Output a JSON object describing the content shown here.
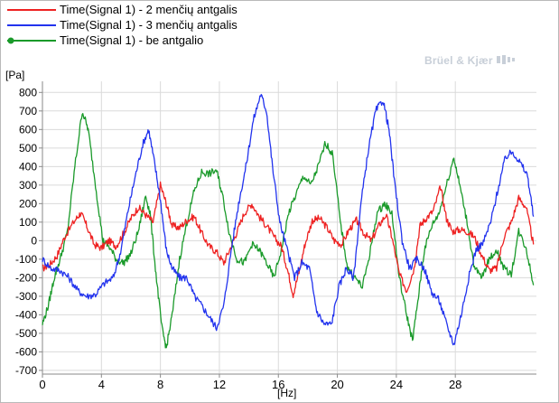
{
  "colors": {
    "series_red": "#ee2222",
    "series_blue": "#2233ee",
    "series_green": "#1a9a2a",
    "grid": "#dadada",
    "axis": "#8a8a8a",
    "watermark": "#c8cfd8"
  },
  "watermark": "Brüel & Kjær",
  "watermark_icon": "bk-logo-icon",
  "chart_data": {
    "type": "line",
    "xlabel": "[Hz]",
    "ylabel": "[Pa]",
    "xlim": [
      0,
      33.5
    ],
    "ylim": [
      -720,
      860
    ],
    "x_ticks": [
      0,
      4,
      8,
      12,
      16,
      20,
      24,
      28
    ],
    "y_ticks": [
      -700,
      -600,
      -500,
      -400,
      -300,
      -200,
      -100,
      0,
      100,
      200,
      300,
      400,
      500,
      600,
      700,
      800
    ],
    "grid": true,
    "legend_position": "top-left",
    "series": [
      {
        "name": "Time(Signal 1) - 2 menčių antgalis",
        "marker": "none",
        "points": [
          [
            0,
            -150
          ],
          [
            0.5,
            -130
          ],
          [
            1,
            -80
          ],
          [
            1.5,
            20
          ],
          [
            2.2,
            110
          ],
          [
            2.6,
            150
          ],
          [
            3,
            80
          ],
          [
            3.5,
            -20
          ],
          [
            4,
            -40
          ],
          [
            4.5,
            0
          ],
          [
            5,
            -30
          ],
          [
            5.5,
            40
          ],
          [
            6,
            120
          ],
          [
            6.5,
            180
          ],
          [
            7,
            140
          ],
          [
            7.5,
            100
          ],
          [
            8,
            300
          ],
          [
            8.4,
            200
          ],
          [
            8.8,
            80
          ],
          [
            9.3,
            70
          ],
          [
            9.8,
            110
          ],
          [
            10.3,
            130
          ],
          [
            10.8,
            40
          ],
          [
            11.3,
            -30
          ],
          [
            11.8,
            -60
          ],
          [
            12.3,
            -120
          ],
          [
            12.8,
            -30
          ],
          [
            13.2,
            50
          ],
          [
            13.7,
            150
          ],
          [
            14.2,
            200
          ],
          [
            14.7,
            130
          ],
          [
            15.2,
            80
          ],
          [
            15.7,
            20
          ],
          [
            16.2,
            -30
          ],
          [
            16.6,
            -150
          ],
          [
            17,
            -290
          ],
          [
            17.4,
            -170
          ],
          [
            17.8,
            -20
          ],
          [
            18.3,
            110
          ],
          [
            18.8,
            120
          ],
          [
            19.3,
            70
          ],
          [
            19.8,
            0
          ],
          [
            20.3,
            -20
          ],
          [
            20.8,
            60
          ],
          [
            21.3,
            110
          ],
          [
            21.8,
            40
          ],
          [
            22.3,
            0
          ],
          [
            22.8,
            80
          ],
          [
            23.3,
            140
          ],
          [
            23.7,
            20
          ],
          [
            24.2,
            -180
          ],
          [
            24.7,
            -270
          ],
          [
            25.2,
            -150
          ],
          [
            25.6,
            80
          ],
          [
            26,
            120
          ],
          [
            26.5,
            160
          ],
          [
            27,
            290
          ],
          [
            27.4,
            120
          ],
          [
            27.8,
            50
          ],
          [
            28.3,
            60
          ],
          [
            28.8,
            50
          ],
          [
            29.3,
            20
          ],
          [
            29.8,
            -80
          ],
          [
            30.3,
            -160
          ],
          [
            30.8,
            -150
          ],
          [
            31.3,
            20
          ],
          [
            31.8,
            100
          ],
          [
            32.3,
            230
          ],
          [
            32.8,
            180
          ],
          [
            33.3,
            -20
          ]
        ]
      },
      {
        "name": "Time(Signal 1) - 3 menčių antgalis",
        "marker": "none",
        "points": [
          [
            0,
            -100
          ],
          [
            0.6,
            -150
          ],
          [
            1.2,
            -160
          ],
          [
            1.8,
            -200
          ],
          [
            2.4,
            -270
          ],
          [
            3,
            -300
          ],
          [
            3.6,
            -290
          ],
          [
            4.2,
            -230
          ],
          [
            4.8,
            -200
          ],
          [
            5.3,
            -60
          ],
          [
            5.8,
            160
          ],
          [
            6.3,
            350
          ],
          [
            6.8,
            520
          ],
          [
            7.2,
            600
          ],
          [
            7.6,
            420
          ],
          [
            8,
            220
          ],
          [
            8.4,
            -50
          ],
          [
            8.8,
            -150
          ],
          [
            9.3,
            -200
          ],
          [
            9.8,
            -200
          ],
          [
            10.3,
            -300
          ],
          [
            10.8,
            -350
          ],
          [
            11.3,
            -410
          ],
          [
            11.8,
            -470
          ],
          [
            12.3,
            -350
          ],
          [
            12.8,
            -50
          ],
          [
            13.3,
            200
          ],
          [
            13.8,
            400
          ],
          [
            14.3,
            650
          ],
          [
            14.8,
            790
          ],
          [
            15.2,
            700
          ],
          [
            15.6,
            400
          ],
          [
            16.1,
            100
          ],
          [
            16.6,
            -50
          ],
          [
            17.1,
            -200
          ],
          [
            17.6,
            -120
          ],
          [
            18.1,
            -150
          ],
          [
            18.6,
            -380
          ],
          [
            19.1,
            -450
          ],
          [
            19.6,
            -450
          ],
          [
            20.1,
            -250
          ],
          [
            20.6,
            -150
          ],
          [
            21.1,
            -200
          ],
          [
            21.6,
            200
          ],
          [
            22.1,
            490
          ],
          [
            22.6,
            700
          ],
          [
            23.1,
            760
          ],
          [
            23.5,
            600
          ],
          [
            23.9,
            300
          ],
          [
            24.4,
            0
          ],
          [
            24.9,
            -150
          ],
          [
            25.4,
            -100
          ],
          [
            25.9,
            -150
          ],
          [
            26.4,
            -280
          ],
          [
            26.9,
            -320
          ],
          [
            27.4,
            -450
          ],
          [
            27.9,
            -560
          ],
          [
            28.4,
            -400
          ],
          [
            28.9,
            -200
          ],
          [
            29.4,
            -50
          ],
          [
            29.9,
            -10
          ],
          [
            30.4,
            100
          ],
          [
            30.9,
            280
          ],
          [
            31.4,
            450
          ],
          [
            31.9,
            480
          ],
          [
            32.4,
            420
          ],
          [
            32.9,
            350
          ],
          [
            33.3,
            130
          ]
        ]
      },
      {
        "name": "Time(Signal 1) - be antgalio",
        "marker": "circle",
        "points": [
          [
            0,
            -450
          ],
          [
            0.4,
            -350
          ],
          [
            0.8,
            -200
          ],
          [
            1.2,
            -100
          ],
          [
            1.7,
            50
          ],
          [
            2.2,
            400
          ],
          [
            2.7,
            700
          ],
          [
            3.1,
            600
          ],
          [
            3.6,
            300
          ],
          [
            4.1,
            0
          ],
          [
            4.5,
            -30
          ],
          [
            5,
            -100
          ],
          [
            5.5,
            -120
          ],
          [
            6,
            -70
          ],
          [
            6.5,
            50
          ],
          [
            7,
            240
          ],
          [
            7.3,
            150
          ],
          [
            7.7,
            -180
          ],
          [
            8.1,
            -470
          ],
          [
            8.4,
            -580
          ],
          [
            8.8,
            -400
          ],
          [
            9.3,
            -100
          ],
          [
            9.8,
            100
          ],
          [
            10.3,
            270
          ],
          [
            10.8,
            370
          ],
          [
            11.3,
            360
          ],
          [
            11.8,
            380
          ],
          [
            12.2,
            250
          ],
          [
            12.7,
            30
          ],
          [
            13.2,
            -100
          ],
          [
            13.7,
            -120
          ],
          [
            14.2,
            -20
          ],
          [
            14.7,
            -50
          ],
          [
            15.2,
            -120
          ],
          [
            15.7,
            -200
          ],
          [
            16.2,
            -50
          ],
          [
            16.7,
            150
          ],
          [
            17.2,
            250
          ],
          [
            17.7,
            350
          ],
          [
            18.2,
            300
          ],
          [
            18.7,
            400
          ],
          [
            19.2,
            530
          ],
          [
            19.7,
            460
          ],
          [
            20.2,
            100
          ],
          [
            20.7,
            -150
          ],
          [
            21.2,
            -200
          ],
          [
            21.7,
            -250
          ],
          [
            22.2,
            -70
          ],
          [
            22.7,
            150
          ],
          [
            23.2,
            200
          ],
          [
            23.7,
            150
          ],
          [
            24.2,
            -200
          ],
          [
            24.7,
            -400
          ],
          [
            25.1,
            -540
          ],
          [
            25.5,
            -300
          ],
          [
            25.9,
            -50
          ],
          [
            26.4,
            80
          ],
          [
            26.9,
            150
          ],
          [
            27.4,
            300
          ],
          [
            27.9,
            450
          ],
          [
            28.3,
            300
          ],
          [
            28.8,
            100
          ],
          [
            29.3,
            -150
          ],
          [
            29.8,
            -200
          ],
          [
            30.3,
            -100
          ],
          [
            30.8,
            -50
          ],
          [
            31.3,
            -150
          ],
          [
            31.8,
            -180
          ],
          [
            32.3,
            50
          ],
          [
            32.8,
            -40
          ],
          [
            33.3,
            -240
          ]
        ]
      }
    ]
  }
}
